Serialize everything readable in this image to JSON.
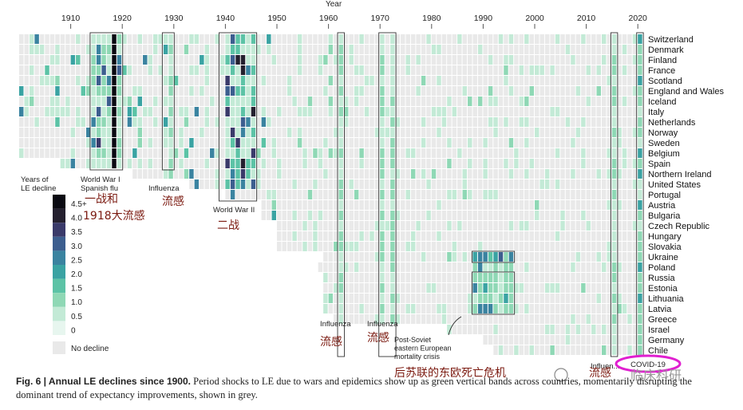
{
  "chart_data": {
    "type": "heatmap",
    "xlabel": "Year",
    "x_ticks": [
      1910,
      1920,
      1930,
      1940,
      1950,
      1960,
      1970,
      1980,
      1990,
      2000,
      2010,
      2020
    ],
    "x_range": [
      1900,
      2021
    ],
    "countries": [
      "Switzerland",
      "Denmark",
      "Finland",
      "France",
      "Scotland",
      "England and Wales",
      "Iceland",
      "Italy",
      "Netherlands",
      "Norway",
      "Sweden",
      "Belgium",
      "Spain",
      "Northern Ireland",
      "United States",
      "Portugal",
      "Austria",
      "Bulgaria",
      "Czech Republic",
      "Hungary",
      "Slovakia",
      "Ukraine",
      "Poland",
      "Russia",
      "Estonia",
      "Lithuania",
      "Latvia",
      "Greece",
      "Israel",
      "Germany",
      "Chile"
    ],
    "data_start_year": [
      1900,
      1900,
      1900,
      1900,
      1900,
      1900,
      1900,
      1900,
      1900,
      1900,
      1900,
      1900,
      1908,
      1922,
      1933,
      1940,
      1947,
      1947,
      1950,
      1950,
      1950,
      1959,
      1958,
      1959,
      1959,
      1959,
      1959,
      1961,
      1983,
      1990,
      1992
    ],
    "legend": {
      "title": "Years of\nLE decline",
      "levels": [
        "4.5+",
        "4.0",
        "3.5",
        "3.0",
        "2.5",
        "2.0",
        "1.5",
        "1.0",
        "0.5",
        "0"
      ],
      "colors": [
        "#0a0a12",
        "#24202f",
        "#3a3a6a",
        "#3c5e8f",
        "#3a83a0",
        "#3aa3a3",
        "#5cc3a6",
        "#8fd8b5",
        "#c3ead6",
        "#e7f6ef"
      ],
      "no_decline_label": "No decline",
      "no_decline_color": "#e9e9e9"
    },
    "shock_events": [
      {
        "period": [
          1914,
          1919
        ],
        "label": "World War I\nSpanish flu"
      },
      {
        "period": [
          1928,
          1929
        ],
        "label": "Influenza"
      },
      {
        "period": [
          1939,
          1945
        ],
        "label": "World War II"
      },
      {
        "period": [
          1962,
          1962
        ],
        "label": "Influenza"
      },
      {
        "period": [
          1970,
          1972
        ],
        "label": "Influenza"
      },
      {
        "period": [
          1987,
          1995
        ],
        "label": "Post-Soviet\neastern European\nmortality crisis"
      },
      {
        "period": [
          2015,
          2015
        ],
        "label": "Influen..."
      },
      {
        "period": [
          2020,
          2020
        ],
        "label": "COVID-19"
      }
    ],
    "annotations_cn": [
      "一战和",
      "1918大流感",
      "流感",
      "二战",
      "流感",
      "流感",
      "后苏联的东欧死亡危机",
      "流感"
    ],
    "caption_bold": "Fig. 6 | Annual LE declines since 1900.",
    "caption_text": " Period shocks to LE due to wars and epidemics show up as green vertical bands across countries, momentarily disrupting the dominant trend of expectancy improvements, shown in grey.",
    "watermark": "临床科研"
  }
}
